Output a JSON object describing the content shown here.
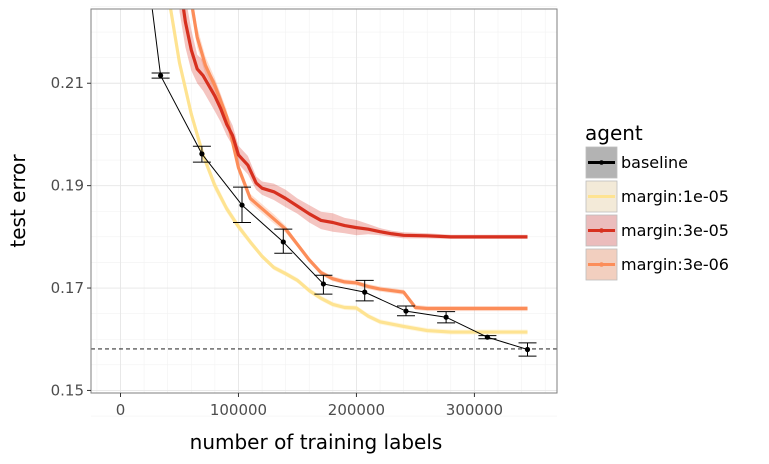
{
  "chart_data": {
    "type": "line",
    "xlabel": "number of training labels",
    "ylabel": "test error",
    "xlim": [
      -25000,
      370000
    ],
    "ylim": [
      0.1495,
      0.2245
    ],
    "x_ticks": [
      0,
      100000,
      200000,
      300000
    ],
    "x_tick_labels": [
      "0",
      "100000",
      "200000",
      "300000"
    ],
    "y_ticks": [
      0.15,
      0.17,
      0.19,
      0.21
    ],
    "y_tick_labels": [
      "0.15",
      "0.17",
      "0.19",
      "0.21"
    ],
    "reference_line": {
      "y": 0.1581,
      "style": "dashed",
      "color": "#000000"
    },
    "legend": {
      "title": "agent",
      "position": "right",
      "entries": [
        "baseline",
        "margin:1e-05",
        "margin:3e-05",
        "margin:3e-06"
      ]
    },
    "series": [
      {
        "name": "margin:1e-05",
        "color": "#fee391",
        "fill": "#f3ead8",
        "x": [
          40000,
          50000,
          55000,
          60000,
          70000,
          80000,
          90000,
          100000,
          110000,
          120000,
          130000,
          140000,
          150000,
          160000,
          170000,
          180000,
          190000,
          200000,
          210000,
          220000,
          240000,
          260000,
          280000,
          300000,
          320000,
          345000
        ],
        "y": [
          0.228,
          0.214,
          0.209,
          0.204,
          0.196,
          0.19,
          0.1855,
          0.182,
          0.179,
          0.1762,
          0.174,
          0.1728,
          0.1715,
          0.1695,
          0.168,
          0.1668,
          0.1662,
          0.1661,
          0.1645,
          0.1634,
          0.1625,
          0.1617,
          0.1614,
          0.1614,
          0.1614,
          0.1614
        ],
        "lower": [
          0.227,
          0.213,
          0.208,
          0.203,
          0.195,
          0.189,
          0.1847,
          0.1813,
          0.1784,
          0.1757,
          0.1735,
          0.1723,
          0.171,
          0.169,
          0.1675,
          0.1663,
          0.1657,
          0.1656,
          0.164,
          0.1629,
          0.162,
          0.1612,
          0.1609,
          0.1609,
          0.1609,
          0.1609
        ],
        "upper": [
          0.229,
          0.215,
          0.21,
          0.205,
          0.197,
          0.191,
          0.1863,
          0.1827,
          0.1796,
          0.1767,
          0.1745,
          0.1733,
          0.172,
          0.17,
          0.1685,
          0.1673,
          0.1667,
          0.1666,
          0.165,
          0.1639,
          0.163,
          0.1622,
          0.1619,
          0.1619,
          0.1619,
          0.1619
        ]
      },
      {
        "name": "margin:3e-06",
        "color": "#fc8d59",
        "fill": "#f2cfbf",
        "x": [
          60000,
          65000,
          72000,
          80000,
          90000,
          100000,
          110000,
          120000,
          130000,
          140000,
          150000,
          160000,
          170000,
          180000,
          190000,
          200000,
          210000,
          220000,
          240000,
          250000,
          260000,
          280000,
          300000,
          320000,
          345000
        ],
        "y": [
          0.226,
          0.219,
          0.2135,
          0.2095,
          0.2035,
          0.1935,
          0.1875,
          0.1855,
          0.1835,
          0.1815,
          0.1785,
          0.1755,
          0.173,
          0.1718,
          0.1712,
          0.171,
          0.1703,
          0.1698,
          0.1692,
          0.1662,
          0.166,
          0.166,
          0.166,
          0.166,
          0.166
        ],
        "lower": [
          0.224,
          0.217,
          0.2118,
          0.208,
          0.2022,
          0.1925,
          0.1866,
          0.1846,
          0.1826,
          0.1808,
          0.178,
          0.175,
          0.1725,
          0.1713,
          0.1707,
          0.1705,
          0.1698,
          0.1693,
          0.1687,
          0.1657,
          0.1655,
          0.1655,
          0.1655,
          0.1655,
          0.1655
        ],
        "upper": [
          0.228,
          0.221,
          0.2152,
          0.211,
          0.2048,
          0.1945,
          0.1884,
          0.1864,
          0.1844,
          0.1822,
          0.179,
          0.176,
          0.1735,
          0.1723,
          0.1717,
          0.1715,
          0.1708,
          0.1703,
          0.1697,
          0.1667,
          0.1665,
          0.1665,
          0.1665,
          0.1665,
          0.1665
        ]
      },
      {
        "name": "margin:3e-05",
        "color": "#d7301f",
        "fill": "#ebbcbc",
        "x": [
          50000,
          55000,
          60000,
          65000,
          70000,
          75000,
          80000,
          85000,
          90000,
          95000,
          100000,
          108000,
          115000,
          120000,
          130000,
          140000,
          150000,
          160000,
          170000,
          180000,
          190000,
          200000,
          210000,
          220000,
          230000,
          240000,
          260000,
          280000,
          300000,
          320000,
          345000
        ],
        "y": [
          0.23,
          0.222,
          0.2165,
          0.2128,
          0.2115,
          0.2095,
          0.2075,
          0.205,
          0.202,
          0.1998,
          0.196,
          0.194,
          0.1905,
          0.1895,
          0.1888,
          0.1875,
          0.186,
          0.1845,
          0.1832,
          0.1828,
          0.1822,
          0.1818,
          0.1815,
          0.181,
          0.1806,
          0.1803,
          0.1802,
          0.18,
          0.18,
          0.18,
          0.18
        ],
        "lower": [
          0.224,
          0.217,
          0.2125,
          0.21,
          0.2085,
          0.2065,
          0.2045,
          0.2024,
          0.1998,
          0.1978,
          0.1942,
          0.1922,
          0.1892,
          0.1882,
          0.1872,
          0.1858,
          0.1845,
          0.1828,
          0.1815,
          0.181,
          0.1807,
          0.1803,
          0.1805,
          0.1803,
          0.18,
          0.1797,
          0.1797,
          0.1796,
          0.1796,
          0.1796,
          0.1796
        ],
        "upper": [
          0.236,
          0.227,
          0.2205,
          0.2156,
          0.2145,
          0.2125,
          0.2105,
          0.2076,
          0.2042,
          0.2018,
          0.1978,
          0.1958,
          0.1918,
          0.1908,
          0.1904,
          0.1892,
          0.1875,
          0.1862,
          0.1849,
          0.1846,
          0.1837,
          0.1833,
          0.1825,
          0.1817,
          0.1812,
          0.1809,
          0.1807,
          0.1804,
          0.1804,
          0.1804,
          0.1804
        ]
      },
      {
        "name": "baseline",
        "color": "#000000",
        "fill": "#b3b3b3",
        "x": [
          25000,
          34000,
          69000,
          103000,
          138000,
          172000,
          207000,
          242000,
          276000,
          311000,
          345000
        ],
        "y": [
          0.228,
          0.2115,
          0.1962,
          0.1862,
          0.179,
          0.1708,
          0.1692,
          0.1655,
          0.1643,
          0.1604,
          0.158
        ],
        "err_low": [
          null,
          0.211,
          0.1946,
          0.1828,
          0.1768,
          0.1688,
          0.1675,
          0.1646,
          0.1632,
          0.1601,
          0.1567
        ],
        "err_high": [
          null,
          0.212,
          0.1977,
          0.1897,
          0.1815,
          0.1725,
          0.1715,
          0.1665,
          0.1654,
          0.1607,
          0.1593
        ]
      }
    ]
  }
}
